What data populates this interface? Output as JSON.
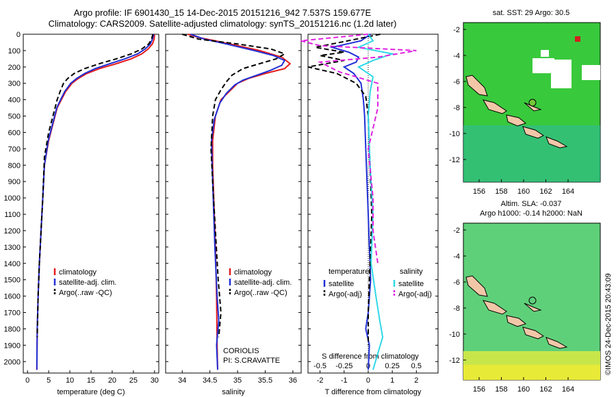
{
  "header": {
    "line1": "Argo profile: IF 6901430_15 14-Dec-2015 20151216_942 7.537S 159.677E",
    "line2": "Climatology: CARS2009. Satellite-adjusted climatology: synTS_20151216.nc (1.2d later)"
  },
  "colors": {
    "climatology": "#e41a1c",
    "satellite": "#1f2fd6",
    "argo": "#000000",
    "sal_satellite": "#2fd8e6",
    "sal_argo": "#e020e0"
  },
  "chart_data": [
    {
      "type": "line",
      "xlabel": "temperature (deg C)",
      "ylabel": "",
      "xlim": [
        -1,
        31
      ],
      "ylim": [
        2070,
        0
      ],
      "xticks": [
        0,
        5,
        10,
        15,
        20,
        25,
        30
      ],
      "yticks": [
        0,
        100,
        200,
        300,
        400,
        500,
        600,
        700,
        800,
        900,
        1000,
        1100,
        1200,
        1300,
        1400,
        1500,
        1600,
        1700,
        1800,
        1900,
        2000
      ],
      "legend": [
        "climatology",
        "satellite-adj. clim.",
        "Argo(..raw -QC)"
      ],
      "series": [
        {
          "name": "climatology",
          "color": "#e41a1c",
          "dash": "",
          "x": [
            30,
            29.9,
            29.5,
            28.5,
            27,
            24.5,
            21,
            17,
            14,
            12,
            10.5,
            9,
            8,
            7,
            6,
            5,
            4,
            3.6,
            3.2,
            2.8,
            2.5,
            2.3,
            2.2
          ],
          "y": [
            0,
            30,
            60,
            90,
            120,
            150,
            180,
            210,
            240,
            270,
            300,
            350,
            400,
            450,
            550,
            650,
            800,
            1000,
            1200,
            1400,
            1600,
            1800,
            2050
          ]
        },
        {
          "name": "satellite-adj. clim.",
          "color": "#1f2fd6",
          "dash": "",
          "x": [
            29.8,
            29.5,
            29,
            27.8,
            26,
            23,
            19.5,
            16,
            13.5,
            11.6,
            10.2,
            8.8,
            7.8,
            6.9,
            5.9,
            4.9,
            4,
            3.6,
            3.2,
            2.8,
            2.5,
            2.3,
            2.2
          ],
          "y": [
            0,
            30,
            60,
            90,
            120,
            150,
            180,
            210,
            240,
            270,
            300,
            350,
            400,
            450,
            550,
            650,
            800,
            1000,
            1200,
            1400,
            1600,
            1800,
            2050
          ]
        },
        {
          "name": "Argo(..raw -QC)",
          "color": "#000000",
          "dash": "7,4",
          "x": [
            29.6,
            29.3,
            28.6,
            27,
            24.5,
            21,
            17,
            13.5,
            11,
            9.5,
            8.5,
            7.7,
            7,
            6,
            5,
            4,
            3.6,
            3.2,
            2.8,
            2.5,
            2.3
          ],
          "y": [
            0,
            30,
            60,
            90,
            120,
            150,
            180,
            210,
            240,
            270,
            300,
            350,
            400,
            500,
            600,
            750,
            1000,
            1200,
            1400,
            1600,
            1850
          ]
        }
      ]
    },
    {
      "type": "line",
      "xlabel": "salinity",
      "ylabel": "",
      "xlim": [
        33.7,
        36.15
      ],
      "ylim": [
        2070,
        0
      ],
      "xticks": [
        34,
        34.5,
        35,
        35.5,
        36
      ],
      "legend": [
        "climatology",
        "satellite-adj. clim.",
        "Argo(..raw -QC)"
      ],
      "annotation": [
        "CORIOLIS",
        "PI: S.CRAVATTE"
      ],
      "series": [
        {
          "name": "climatology",
          "color": "#e41a1c",
          "dash": "",
          "x": [
            34.1,
            34.3,
            34.6,
            35.0,
            35.4,
            35.8,
            35.95,
            35.85,
            35.5,
            35.2,
            35.0,
            34.85,
            34.7,
            34.6,
            34.55,
            34.55,
            34.57,
            34.6,
            34.62,
            34.63,
            34.64
          ],
          "y": [
            0,
            20,
            40,
            70,
            100,
            140,
            180,
            210,
            240,
            270,
            300,
            350,
            400,
            500,
            650,
            800,
            1000,
            1300,
            1600,
            1900,
            2050
          ]
        },
        {
          "name": "satellite-adj. clim.",
          "color": "#1f2fd6",
          "dash": "",
          "x": [
            34.15,
            34.4,
            34.8,
            35.3,
            35.65,
            35.85,
            35.8,
            35.6,
            35.35,
            35.1,
            34.95,
            34.8,
            34.68,
            34.58,
            34.53,
            34.54,
            34.56,
            34.59,
            34.63,
            34.66,
            34.62,
            34.64
          ],
          "y": [
            0,
            30,
            60,
            100,
            130,
            160,
            190,
            220,
            250,
            280,
            310,
            360,
            420,
            520,
            650,
            800,
            1000,
            1300,
            1600,
            1750,
            1900,
            2050
          ]
        },
        {
          "name": "Argo(..raw -QC)",
          "color": "#000000",
          "dash": "7,4",
          "x": [
            34.0,
            34.3,
            35.0,
            35.6,
            35.85,
            35.7,
            35.4,
            35.1,
            34.9,
            34.8,
            34.7,
            34.6,
            34.55,
            34.52,
            34.55,
            34.6,
            34.65,
            34.7,
            34.66
          ],
          "y": [
            0,
            30,
            60,
            90,
            120,
            150,
            180,
            210,
            250,
            290,
            340,
            400,
            500,
            700,
            900,
            1200,
            1500,
            1700,
            1850
          ]
        }
      ]
    },
    {
      "type": "line",
      "xlabel": "T difference from climatology",
      "xlabel_top": "S difference from climatology",
      "xlim": [
        -2.5,
        2.9
      ],
      "ylim": [
        2070,
        0
      ],
      "xticks": [
        -2,
        -1,
        0,
        1,
        2
      ],
      "xticklabels": [
        "-2",
        "-1",
        "0",
        "1",
        "2"
      ],
      "sticks": [
        -0.5,
        -0.25,
        0,
        0.25,
        0.5
      ],
      "sticklabels": [
        "-0.5",
        "-0.25",
        "0",
        "0.25",
        "0.5"
      ],
      "legend_titles": [
        "temperature",
        "salinity"
      ],
      "legend": [
        "satellite",
        "Argo(-adj)",
        "satellite",
        "Argo(-adj)"
      ],
      "series": [
        {
          "name": "satellite",
          "color": "#1f2fd6",
          "dash": "",
          "x": [
            0.1,
            -0.3,
            -1.5,
            -0.8,
            -0.4,
            -0.5,
            -1.0,
            -0.6,
            -0.3,
            -0.2,
            -0.15,
            -0.1,
            -0.05,
            0,
            0.05,
            0.1,
            0,
            -0.1,
            0.05,
            0
          ],
          "y": [
            0,
            40,
            80,
            110,
            140,
            170,
            200,
            240,
            300,
            400,
            500,
            700,
            900,
            1100,
            1300,
            1500,
            1700,
            1800,
            1900,
            2050
          ]
        },
        {
          "name": "Argo(-adj)",
          "color": "#000000",
          "dash": "7,4",
          "x": [
            0.5,
            -0.5,
            -2.2,
            -1.0,
            -2.0,
            -1.0,
            -2.5,
            -1.3,
            -0.5,
            -0.1,
            0,
            0.05,
            0.1,
            0.15,
            0.1,
            0.05,
            0,
            0
          ],
          "y": [
            0,
            30,
            80,
            110,
            130,
            160,
            200,
            240,
            300,
            380,
            500,
            700,
            900,
            1100,
            1300,
            1500,
            1700,
            1900
          ]
        },
        {
          "name": "satellite",
          "color": "#2fd8e6",
          "dash": "",
          "x": [
            0,
            0.05,
            -0.1,
            0.25,
            0.05,
            -0.1,
            0.05,
            0.02,
            0,
            0.02,
            0.05,
            0.03,
            0.08,
            0.12,
            0.15,
            0.05
          ],
          "y": [
            0,
            40,
            80,
            120,
            160,
            200,
            260,
            350,
            500,
            800,
            1100,
            1400,
            1600,
            1750,
            1850,
            2050
          ]
        },
        {
          "name": "Argo(-adj)",
          "color": "#e020e0",
          "dash": "7,4",
          "x": [
            0,
            -0.7,
            -0.5,
            0.5,
            0.1,
            -0.5,
            -0.3,
            0.1,
            0.1,
            0.0,
            0.05,
            0.05,
            0.1
          ],
          "y": [
            0,
            40,
            70,
            100,
            140,
            170,
            230,
            300,
            450,
            700,
            1000,
            1200,
            1400
          ]
        }
      ]
    }
  ],
  "maps": [
    {
      "title": "sat. SST: 29 Argo: 30.5",
      "xticks": [
        "156",
        "158",
        "160",
        "162",
        "164"
      ],
      "yticks": [
        "-2",
        "-4",
        "-6",
        "-8",
        "-10",
        "-12"
      ],
      "fill": "#39c93c"
    },
    {
      "title_line1": "Altim. SLA: -0.037",
      "title_line2": "Argo h1000: -0.14 h2000: NaN",
      "xticks": [
        "156",
        "158",
        "160",
        "162",
        "164"
      ],
      "yticks": [
        "-2",
        "-4",
        "-6",
        "-8",
        "-10",
        "-12"
      ],
      "fill": "#5fd07a"
    }
  ],
  "credit": "©IMOS 24-Dec-2015 20:43:09"
}
